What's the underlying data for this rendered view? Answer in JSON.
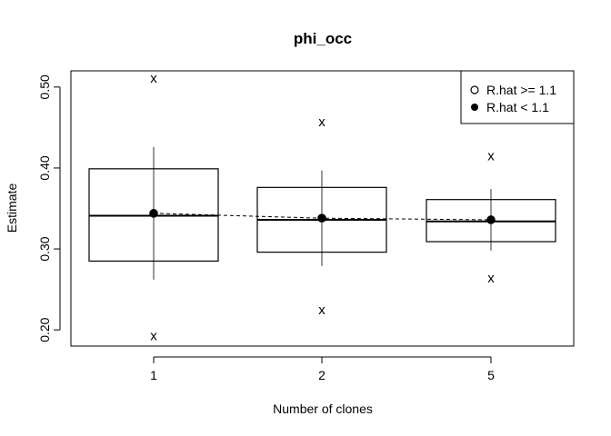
{
  "chart_data": {
    "type": "box",
    "title": "phi_occ",
    "xlabel": "Number of clones",
    "ylabel": "Estimate",
    "categories": [
      "1",
      "2",
      "5"
    ],
    "ylim": [
      0.18,
      0.52
    ],
    "yticks": [
      0.2,
      0.3,
      0.4,
      0.5
    ],
    "ytick_labels": [
      "0.20",
      "0.30",
      "0.40",
      "0.50"
    ],
    "boxes": [
      {
        "category": "1",
        "lower": 0.285,
        "median": 0.341,
        "upper": 0.399
      },
      {
        "category": "2",
        "lower": 0.296,
        "median": 0.336,
        "upper": 0.376
      },
      {
        "category": "5",
        "lower": 0.309,
        "median": 0.334,
        "upper": 0.361
      }
    ],
    "intervals": [
      {
        "category": "1",
        "low": 0.262,
        "high": 0.426
      },
      {
        "category": "2",
        "low": 0.279,
        "high": 0.397
      },
      {
        "category": "5",
        "low": 0.298,
        "high": 0.374
      }
    ],
    "estimates": [
      {
        "category": "1",
        "value": 0.344,
        "rhat_ok": true
      },
      {
        "category": "2",
        "value": 0.338,
        "rhat_ok": true
      },
      {
        "category": "5",
        "value": 0.336,
        "rhat_ok": true
      }
    ],
    "extremes": [
      {
        "category": "1",
        "min": 0.193,
        "max": 0.511
      },
      {
        "category": "2",
        "min": 0.225,
        "max": 0.457
      },
      {
        "category": "5",
        "min": 0.264,
        "max": 0.415
      }
    ],
    "extreme_marker": "x",
    "reference_line": {
      "style": "dashed",
      "connects": "estimates"
    },
    "legend": {
      "placement": "top-right",
      "entries": [
        {
          "label": "R.hat >= 1.1",
          "symbol": "open-circle"
        },
        {
          "label": "R.hat < 1.1",
          "symbol": "filled-circle"
        }
      ]
    }
  }
}
